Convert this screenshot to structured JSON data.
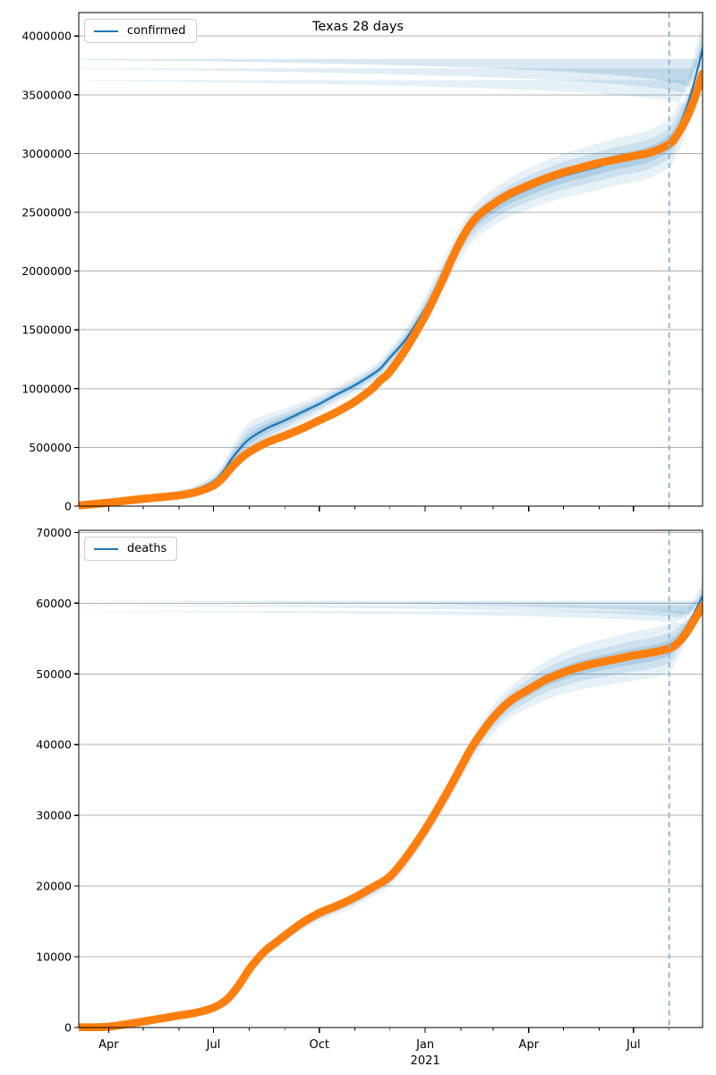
{
  "figure": {
    "title": "Texas 28 days"
  },
  "colors": {
    "actual": "#ff7f0e",
    "predicted": "#1f77b4",
    "band": "#1f77b4",
    "vline": "#86b4d6",
    "grid": "#b0b0b0",
    "spine": "#000000",
    "legend_border": "#cccccc"
  },
  "chart_data": [
    {
      "type": "line",
      "title": "Texas 28 days",
      "legend": "confirmed",
      "ylim": [
        0,
        4200000
      ],
      "yticks": [
        0,
        500000,
        1000000,
        1500000,
        2000000,
        2500000,
        3000000,
        3500000,
        4000000
      ],
      "ytick_labels": [
        "0",
        "500000",
        "1000000",
        "1500000",
        "2000000",
        "2500000",
        "3000000",
        "3500000",
        "4000000"
      ],
      "grid": true,
      "legend_position": "upper left",
      "x_axis": {
        "day_span": 542,
        "major_tick_days": [
          26,
          117,
          209,
          301,
          391,
          482
        ],
        "major_tick_labels": [
          "Apr",
          "Jul",
          "Oct",
          "Jan",
          "Apr",
          "Jul"
        ],
        "minor_tick_days": [
          56,
          87,
          148,
          179,
          240,
          270,
          332,
          360,
          421,
          452,
          513
        ],
        "show_labels": false,
        "year_label": "2021",
        "year_day": 301
      },
      "vline_day": 513,
      "series": [
        {
          "name": "actual",
          "style": "thick-dotted-orange",
          "points": [
            [
              0,
              5000
            ],
            [
              26,
              30000
            ],
            [
              56,
              62000
            ],
            [
              87,
              92000
            ],
            [
              102,
              120000
            ],
            [
              117,
              175000
            ],
            [
              126,
              250000
            ],
            [
              132,
              320000
            ],
            [
              140,
              400000
            ],
            [
              148,
              460000
            ],
            [
              163,
              540000
            ],
            [
              179,
              600000
            ],
            [
              194,
              660000
            ],
            [
              209,
              730000
            ],
            [
              224,
              800000
            ],
            [
              240,
              890000
            ],
            [
              255,
              1000000
            ],
            [
              262,
              1070000
            ],
            [
              270,
              1140000
            ],
            [
              285,
              1350000
            ],
            [
              301,
              1620000
            ],
            [
              315,
              1900000
            ],
            [
              324,
              2100000
            ],
            [
              332,
              2260000
            ],
            [
              340,
              2390000
            ],
            [
              348,
              2480000
            ],
            [
              360,
              2570000
            ],
            [
              375,
              2660000
            ],
            [
              391,
              2730000
            ],
            [
              406,
              2790000
            ],
            [
              421,
              2840000
            ],
            [
              436,
              2880000
            ],
            [
              452,
              2920000
            ],
            [
              467,
              2950000
            ],
            [
              482,
              2980000
            ],
            [
              497,
              3010000
            ],
            [
              513,
              3080000
            ],
            [
              520,
              3160000
            ],
            [
              527,
              3280000
            ],
            [
              534,
              3440000
            ],
            [
              542,
              3680000
            ]
          ]
        },
        {
          "name": "predicted",
          "style": "blue-line-with-band",
          "points": [
            [
              0,
              5000
            ],
            [
              26,
              38000
            ],
            [
              56,
              75000
            ],
            [
              87,
              112000
            ],
            [
              102,
              145000
            ],
            [
              117,
              210000
            ],
            [
              126,
              300000
            ],
            [
              132,
              390000
            ],
            [
              140,
              490000
            ],
            [
              148,
              570000
            ],
            [
              163,
              660000
            ],
            [
              179,
              730000
            ],
            [
              194,
              800000
            ],
            [
              209,
              870000
            ],
            [
              224,
              950000
            ],
            [
              240,
              1030000
            ],
            [
              255,
              1120000
            ],
            [
              262,
              1170000
            ],
            [
              270,
              1260000
            ],
            [
              285,
              1430000
            ],
            [
              301,
              1680000
            ],
            [
              315,
              1940000
            ],
            [
              324,
              2110000
            ],
            [
              332,
              2250000
            ],
            [
              340,
              2370000
            ],
            [
              348,
              2450000
            ],
            [
              360,
              2540000
            ],
            [
              375,
              2630000
            ],
            [
              391,
              2700000
            ],
            [
              406,
              2760000
            ],
            [
              421,
              2810000
            ],
            [
              436,
              2850000
            ],
            [
              452,
              2890000
            ],
            [
              467,
              2930000
            ],
            [
              482,
              2960000
            ],
            [
              497,
              3000000
            ],
            [
              513,
              3090000
            ],
            [
              520,
              3200000
            ],
            [
              527,
              3360000
            ],
            [
              534,
              3580000
            ],
            [
              542,
              3890000
            ]
          ],
          "band_halfwidths": [
            3000,
            10000,
            18000,
            25000,
            35000,
            55000,
            75000,
            95000,
            120000,
            140000,
            120000,
            100000,
            85000,
            75000,
            70000,
            70000,
            72000,
            75000,
            80000,
            92000,
            105000,
            118000,
            128000,
            136000,
            143000,
            149000,
            156000,
            166000,
            176000,
            183000,
            189000,
            193000,
            197000,
            200000,
            203000,
            205000,
            205000,
            200000,
            205000,
            225000,
            265000
          ]
        }
      ]
    },
    {
      "type": "line",
      "title": "",
      "legend": "deaths",
      "ylim": [
        0,
        70300
      ],
      "yticks": [
        0,
        10000,
        20000,
        30000,
        40000,
        50000,
        60000,
        70000
      ],
      "ytick_labels": [
        "0",
        "10000",
        "20000",
        "30000",
        "40000",
        "50000",
        "60000",
        "70000"
      ],
      "grid": true,
      "legend_position": "upper left",
      "x_axis": {
        "day_span": 542,
        "major_tick_days": [
          26,
          117,
          209,
          301,
          391,
          482
        ],
        "major_tick_labels": [
          "Apr",
          "Jul",
          "Oct",
          "Jan",
          "Apr",
          "Jul"
        ],
        "minor_tick_days": [
          56,
          87,
          148,
          179,
          240,
          270,
          332,
          360,
          421,
          452,
          513
        ],
        "show_labels": true,
        "year_label": "2021",
        "year_day": 301
      },
      "vline_day": 513,
      "series": [
        {
          "name": "actual",
          "style": "thick-dotted-orange",
          "points": [
            [
              0,
              20
            ],
            [
              26,
              110
            ],
            [
              56,
              850
            ],
            [
              87,
              1700
            ],
            [
              102,
              2100
            ],
            [
              117,
              2800
            ],
            [
              126,
              3600
            ],
            [
              132,
              4500
            ],
            [
              140,
              6200
            ],
            [
              148,
              8200
            ],
            [
              156,
              9800
            ],
            [
              163,
              11000
            ],
            [
              171,
              12000
            ],
            [
              179,
              13000
            ],
            [
              194,
              14800
            ],
            [
              209,
              16200
            ],
            [
              224,
              17200
            ],
            [
              240,
              18400
            ],
            [
              255,
              19800
            ],
            [
              270,
              21300
            ],
            [
              285,
              24200
            ],
            [
              301,
              28000
            ],
            [
              315,
              31800
            ],
            [
              324,
              34400
            ],
            [
              332,
              36800
            ],
            [
              340,
              39200
            ],
            [
              348,
              41200
            ],
            [
              360,
              43800
            ],
            [
              375,
              46200
            ],
            [
              391,
              47800
            ],
            [
              406,
              49200
            ],
            [
              421,
              50200
            ],
            [
              436,
              51000
            ],
            [
              452,
              51600
            ],
            [
              467,
              52100
            ],
            [
              482,
              52600
            ],
            [
              497,
              53000
            ],
            [
              513,
              53600
            ],
            [
              520,
              54300
            ],
            [
              527,
              55600
            ],
            [
              534,
              57400
            ],
            [
              542,
              59600
            ]
          ]
        },
        {
          "name": "predicted",
          "style": "blue-line-with-band",
          "points": [
            [
              0,
              20
            ],
            [
              26,
              110
            ],
            [
              56,
              800
            ],
            [
              87,
              1650
            ],
            [
              102,
              2050
            ],
            [
              117,
              2750
            ],
            [
              126,
              3500
            ],
            [
              132,
              4400
            ],
            [
              140,
              6000
            ],
            [
              148,
              8000
            ],
            [
              156,
              9600
            ],
            [
              163,
              10800
            ],
            [
              171,
              11800
            ],
            [
              179,
              12800
            ],
            [
              194,
              14500
            ],
            [
              209,
              15900
            ],
            [
              224,
              16900
            ],
            [
              240,
              18100
            ],
            [
              255,
              19500
            ],
            [
              270,
              21000
            ],
            [
              285,
              23900
            ],
            [
              301,
              27700
            ],
            [
              315,
              31500
            ],
            [
              324,
              34100
            ],
            [
              332,
              36500
            ],
            [
              340,
              38900
            ],
            [
              348,
              41000
            ],
            [
              360,
              43600
            ],
            [
              375,
              46000
            ],
            [
              391,
              47700
            ],
            [
              406,
              49100
            ],
            [
              421,
              50100
            ],
            [
              436,
              50900
            ],
            [
              452,
              51500
            ],
            [
              467,
              52000
            ],
            [
              482,
              52500
            ],
            [
              497,
              52900
            ],
            [
              513,
              53700
            ],
            [
              520,
              54800
            ],
            [
              527,
              56400
            ],
            [
              534,
              58400
            ],
            [
              542,
              61000
            ]
          ],
          "band_halfwidths": [
            20,
            60,
            120,
            180,
            220,
            280,
            350,
            420,
            500,
            560,
            600,
            640,
            680,
            700,
            750,
            800,
            850,
            900,
            950,
            1000,
            1100,
            1200,
            1300,
            1400,
            1500,
            1600,
            1750,
            1950,
            2200,
            2500,
            2750,
            2950,
            3100,
            3250,
            3350,
            3450,
            3500,
            3400,
            2600,
            2200,
            2000,
            2100
          ]
        }
      ]
    }
  ]
}
